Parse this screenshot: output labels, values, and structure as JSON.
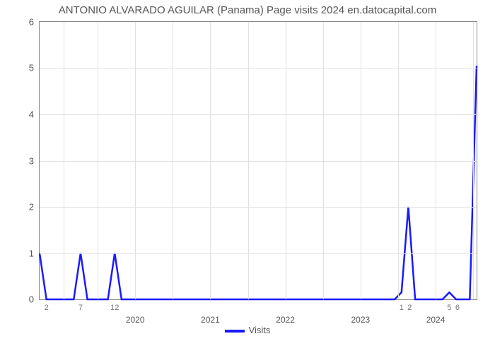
{
  "chart": {
    "type": "line",
    "title": "ANTONIO ALVARADO AGUILAR (Panama) Page visits 2024 en.datocapital.com",
    "title_fontsize": 15,
    "title_color": "#555555",
    "background_color": "#ffffff",
    "plot_border_color": "#888888",
    "grid_color": "#e0e0e0",
    "line_color": "#1a1aff",
    "line_width": 2.5,
    "x_axis_label": "Visits",
    "legend_label": "Visits",
    "y": {
      "min": 0,
      "max": 6,
      "ticks": [
        0,
        1,
        2,
        3,
        4,
        5,
        6
      ]
    },
    "x": {
      "min": 0,
      "max": 64,
      "minor_ticks": [
        {
          "pos": 1,
          "label": "2"
        },
        {
          "pos": 6,
          "label": "7"
        },
        {
          "pos": 11,
          "label": "12"
        },
        {
          "pos": 53,
          "label": "1"
        },
        {
          "pos": 54.2,
          "label": "2"
        },
        {
          "pos": 60,
          "label": "5"
        },
        {
          "pos": 61.2,
          "label": "6"
        }
      ],
      "major_ticks": [
        {
          "pos": 14,
          "label": "2020"
        },
        {
          "pos": 25,
          "label": "2021"
        },
        {
          "pos": 36,
          "label": "2022"
        },
        {
          "pos": 47,
          "label": "2023"
        },
        {
          "pos": 58,
          "label": "2024"
        }
      ],
      "grid_positions": [
        3.5,
        8.5,
        14,
        19.5,
        25,
        30.5,
        36,
        41.5,
        47,
        52.5,
        58,
        63.5
      ]
    },
    "series": {
      "name": "Visits",
      "points": [
        [
          0,
          1
        ],
        [
          1,
          0
        ],
        [
          2,
          0
        ],
        [
          5,
          0
        ],
        [
          6,
          1
        ],
        [
          7,
          0
        ],
        [
          8,
          0
        ],
        [
          10,
          0
        ],
        [
          11,
          1
        ],
        [
          12,
          0
        ],
        [
          13,
          0
        ],
        [
          52,
          0
        ],
        [
          53,
          0.15
        ],
        [
          54,
          2
        ],
        [
          55,
          0
        ],
        [
          56,
          0
        ],
        [
          59,
          0
        ],
        [
          60,
          0.15
        ],
        [
          61,
          0
        ],
        [
          63,
          0
        ],
        [
          64,
          5.05
        ]
      ]
    }
  }
}
